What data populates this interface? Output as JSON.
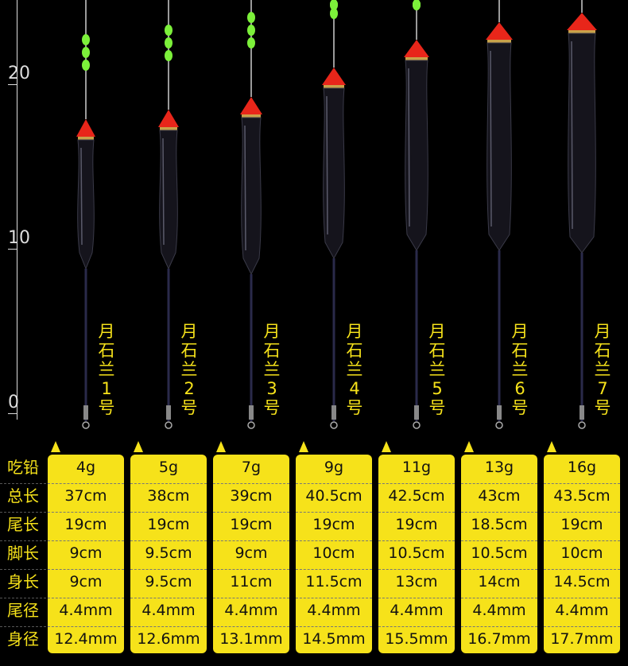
{
  "scale": {
    "ticks": [
      {
        "label": "20",
        "value": 20
      },
      {
        "label": "10",
        "value": 10
      },
      {
        "label": "0",
        "value": 0
      }
    ]
  },
  "floats": [
    {
      "name_chars": [
        "月",
        "石",
        "兰",
        "1",
        "号"
      ]
    },
    {
      "name_chars": [
        "月",
        "石",
        "兰",
        "2",
        "号"
      ]
    },
    {
      "name_chars": [
        "月",
        "石",
        "兰",
        "3",
        "号"
      ]
    },
    {
      "name_chars": [
        "月",
        "石",
        "兰",
        "4",
        "号"
      ]
    },
    {
      "name_chars": [
        "月",
        "石",
        "兰",
        "5",
        "号"
      ]
    },
    {
      "name_chars": [
        "月",
        "石",
        "兰",
        "6",
        "号"
      ]
    },
    {
      "name_chars": [
        "月",
        "石",
        "兰",
        "7",
        "号"
      ]
    }
  ],
  "spec_table": {
    "row_labels": [
      "吃铅",
      "总长",
      "尾长",
      "脚长",
      "身长",
      "尾径",
      "身径"
    ],
    "columns": [
      [
        "4g",
        "37cm",
        "19cm",
        "9cm",
        "9cm",
        "4.4mm",
        "12.4mm"
      ],
      [
        "5g",
        "38cm",
        "19cm",
        "9.5cm",
        "9.5cm",
        "4.4mm",
        "12.6mm"
      ],
      [
        "7g",
        "39cm",
        "19cm",
        "9cm",
        "11cm",
        "4.4mm",
        "13.1mm"
      ],
      [
        "9g",
        "40.5cm",
        "19cm",
        "10cm",
        "11.5cm",
        "4.4mm",
        "14.5mm"
      ],
      [
        "11g",
        "42.5cm",
        "19cm",
        "10.5cm",
        "13cm",
        "4.4mm",
        "15.5mm"
      ],
      [
        "13g",
        "43cm",
        "18.5cm",
        "10.5cm",
        "14cm",
        "4.4mm",
        "16.7mm"
      ],
      [
        "16g",
        "43.5cm",
        "19cm",
        "10cm",
        "14.5cm",
        "4.4mm",
        "17.7mm"
      ]
    ]
  },
  "colors": {
    "accent": "#f6e21a",
    "float_tip": "#e8261a",
    "float_body": "#15141c",
    "tail_marker": "#7cf03a"
  }
}
